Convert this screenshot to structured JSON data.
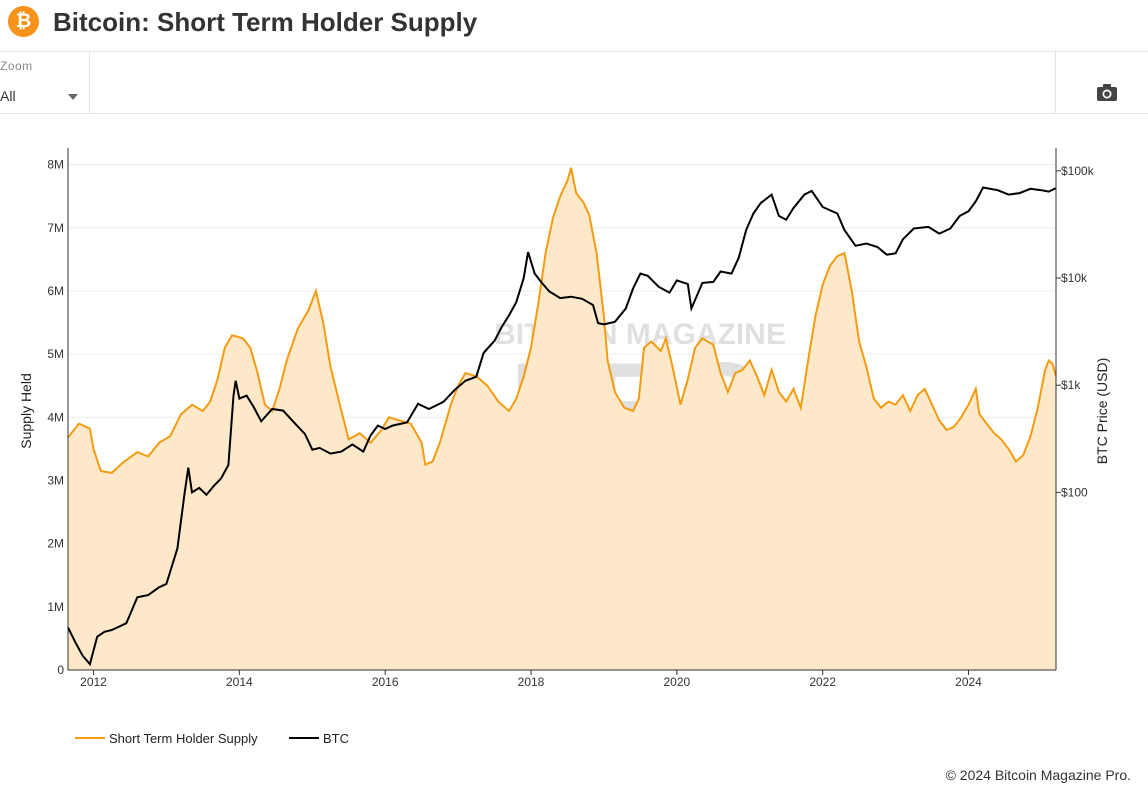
{
  "header": {
    "title": "Bitcoin: Short Term Holder Supply",
    "logo_glyph": "₿",
    "logo_color": "#f7931a"
  },
  "toolbar": {
    "zoom_label": "Zoom",
    "zoom_value": "All",
    "camera_icon": "camera-icon"
  },
  "footer": {
    "copyright": "© 2024 Bitcoin Magazine Pro."
  },
  "watermark": {
    "line1": "BITCOIN MAGAZINE",
    "line2": "PRO"
  },
  "chart_data": {
    "type": "area",
    "title": "",
    "x_ticks": [
      "2012",
      "2014",
      "2016",
      "2018",
      "2020",
      "2022",
      "2024"
    ],
    "xlim": [
      2011.65,
      2025.2
    ],
    "y_left": {
      "label": "Supply Held",
      "ticks": [
        "0",
        "1M",
        "2M",
        "3M",
        "4M",
        "5M",
        "6M",
        "7M",
        "8M"
      ],
      "tick_values": [
        0,
        1000000,
        2000000,
        3000000,
        4000000,
        5000000,
        6000000,
        7000000,
        8000000
      ],
      "range": [
        0,
        8200000
      ]
    },
    "y_right": {
      "label": "BTC Price (USD)",
      "scale": "log",
      "ticks": [
        "$100",
        "$1k",
        "$10k",
        "$100k"
      ],
      "tick_values": [
        100,
        1000,
        10000,
        100000
      ],
      "range": [
        2.2,
        150000
      ]
    },
    "grid": true,
    "legend_position": "bottom-left",
    "series": [
      {
        "name": "Short Term Holder Supply",
        "axis": "left",
        "color": "#f39c12",
        "fill": "#fde9c9",
        "points": [
          [
            2011.65,
            3680000
          ],
          [
            2011.8,
            3900000
          ],
          [
            2011.95,
            3820000
          ],
          [
            2012.0,
            3500000
          ],
          [
            2012.1,
            3150000
          ],
          [
            2012.25,
            3120000
          ],
          [
            2012.4,
            3280000
          ],
          [
            2012.6,
            3450000
          ],
          [
            2012.75,
            3380000
          ],
          [
            2012.9,
            3600000
          ],
          [
            2013.05,
            3700000
          ],
          [
            2013.2,
            4050000
          ],
          [
            2013.35,
            4200000
          ],
          [
            2013.5,
            4100000
          ],
          [
            2013.6,
            4250000
          ],
          [
            2013.7,
            4600000
          ],
          [
            2013.8,
            5100000
          ],
          [
            2013.9,
            5300000
          ],
          [
            2014.05,
            5250000
          ],
          [
            2014.15,
            5100000
          ],
          [
            2014.25,
            4700000
          ],
          [
            2014.35,
            4200000
          ],
          [
            2014.45,
            4100000
          ],
          [
            2014.55,
            4450000
          ],
          [
            2014.65,
            4900000
          ],
          [
            2014.8,
            5400000
          ],
          [
            2014.95,
            5700000
          ],
          [
            2015.05,
            6000000
          ],
          [
            2015.15,
            5500000
          ],
          [
            2015.25,
            4800000
          ],
          [
            2015.4,
            4100000
          ],
          [
            2015.5,
            3650000
          ],
          [
            2015.65,
            3750000
          ],
          [
            2015.8,
            3600000
          ],
          [
            2015.95,
            3800000
          ],
          [
            2016.05,
            4000000
          ],
          [
            2016.2,
            3950000
          ],
          [
            2016.35,
            3900000
          ],
          [
            2016.5,
            3600000
          ],
          [
            2016.55,
            3250000
          ],
          [
            2016.65,
            3300000
          ],
          [
            2016.75,
            3600000
          ],
          [
            2016.9,
            4200000
          ],
          [
            2017.0,
            4500000
          ],
          [
            2017.1,
            4700000
          ],
          [
            2017.25,
            4650000
          ],
          [
            2017.4,
            4500000
          ],
          [
            2017.55,
            4250000
          ],
          [
            2017.7,
            4100000
          ],
          [
            2017.8,
            4300000
          ],
          [
            2017.9,
            4650000
          ],
          [
            2018.0,
            5100000
          ],
          [
            2018.1,
            5800000
          ],
          [
            2018.2,
            6600000
          ],
          [
            2018.3,
            7150000
          ],
          [
            2018.4,
            7500000
          ],
          [
            2018.5,
            7750000
          ],
          [
            2018.55,
            7950000
          ],
          [
            2018.62,
            7550000
          ],
          [
            2018.72,
            7400000
          ],
          [
            2018.8,
            7200000
          ],
          [
            2018.9,
            6600000
          ],
          [
            2019.0,
            5600000
          ],
          [
            2019.05,
            4900000
          ],
          [
            2019.15,
            4400000
          ],
          [
            2019.28,
            4150000
          ],
          [
            2019.4,
            4100000
          ],
          [
            2019.48,
            4300000
          ],
          [
            2019.55,
            5100000
          ],
          [
            2019.65,
            5200000
          ],
          [
            2019.78,
            5050000
          ],
          [
            2019.85,
            5250000
          ],
          [
            2019.95,
            4750000
          ],
          [
            2020.05,
            4200000
          ],
          [
            2020.15,
            4600000
          ],
          [
            2020.25,
            5100000
          ],
          [
            2020.35,
            5250000
          ],
          [
            2020.5,
            5150000
          ],
          [
            2020.6,
            4700000
          ],
          [
            2020.7,
            4400000
          ],
          [
            2020.8,
            4700000
          ],
          [
            2020.9,
            4750000
          ],
          [
            2021.0,
            4900000
          ],
          [
            2021.1,
            4650000
          ],
          [
            2021.2,
            4350000
          ],
          [
            2021.3,
            4750000
          ],
          [
            2021.4,
            4400000
          ],
          [
            2021.5,
            4250000
          ],
          [
            2021.6,
            4450000
          ],
          [
            2021.7,
            4150000
          ],
          [
            2021.8,
            4900000
          ],
          [
            2021.9,
            5600000
          ],
          [
            2022.0,
            6100000
          ],
          [
            2022.1,
            6400000
          ],
          [
            2022.2,
            6550000
          ],
          [
            2022.3,
            6600000
          ],
          [
            2022.4,
            6000000
          ],
          [
            2022.5,
            5200000
          ],
          [
            2022.6,
            4800000
          ],
          [
            2022.7,
            4300000
          ],
          [
            2022.8,
            4150000
          ],
          [
            2022.9,
            4250000
          ],
          [
            2023.0,
            4200000
          ],
          [
            2023.1,
            4350000
          ],
          [
            2023.2,
            4100000
          ],
          [
            2023.3,
            4350000
          ],
          [
            2023.4,
            4450000
          ],
          [
            2023.5,
            4200000
          ],
          [
            2023.6,
            3950000
          ],
          [
            2023.7,
            3800000
          ],
          [
            2023.8,
            3850000
          ],
          [
            2023.9,
            4000000
          ],
          [
            2024.0,
            4200000
          ],
          [
            2024.1,
            4450000
          ],
          [
            2024.15,
            4050000
          ],
          [
            2024.25,
            3900000
          ],
          [
            2024.35,
            3750000
          ],
          [
            2024.45,
            3650000
          ],
          [
            2024.55,
            3500000
          ],
          [
            2024.65,
            3300000
          ],
          [
            2024.75,
            3400000
          ],
          [
            2024.85,
            3700000
          ],
          [
            2024.95,
            4150000
          ],
          [
            2025.05,
            4750000
          ],
          [
            2025.1,
            4900000
          ],
          [
            2025.15,
            4850000
          ],
          [
            2025.2,
            4650000
          ]
        ]
      },
      {
        "name": "BTC",
        "axis": "right",
        "color": "#000000",
        "points": [
          [
            2011.65,
            5.5
          ],
          [
            2011.75,
            4.0
          ],
          [
            2011.85,
            3.0
          ],
          [
            2011.95,
            2.5
          ],
          [
            2012.05,
            4.5
          ],
          [
            2012.15,
            5.0
          ],
          [
            2012.25,
            5.2
          ],
          [
            2012.45,
            6.0
          ],
          [
            2012.6,
            10.5
          ],
          [
            2012.75,
            11.0
          ],
          [
            2012.9,
            13.0
          ],
          [
            2013.0,
            14.0
          ],
          [
            2013.15,
            30.0
          ],
          [
            2013.25,
            100.0
          ],
          [
            2013.3,
            170.0
          ],
          [
            2013.35,
            100.0
          ],
          [
            2013.45,
            110.0
          ],
          [
            2013.55,
            95.0
          ],
          [
            2013.65,
            115.0
          ],
          [
            2013.75,
            135.0
          ],
          [
            2013.85,
            180.0
          ],
          [
            2013.92,
            800.0
          ],
          [
            2013.95,
            1100.0
          ],
          [
            2014.0,
            750.0
          ],
          [
            2014.1,
            800.0
          ],
          [
            2014.2,
            620.0
          ],
          [
            2014.3,
            460.0
          ],
          [
            2014.45,
            600.0
          ],
          [
            2014.6,
            580.0
          ],
          [
            2014.75,
            450.0
          ],
          [
            2014.9,
            350.0
          ],
          [
            2015.0,
            250.0
          ],
          [
            2015.1,
            260.0
          ],
          [
            2015.25,
            230.0
          ],
          [
            2015.4,
            240.0
          ],
          [
            2015.55,
            280.0
          ],
          [
            2015.7,
            240.0
          ],
          [
            2015.8,
            340.0
          ],
          [
            2015.9,
            420.0
          ],
          [
            2016.0,
            390.0
          ],
          [
            2016.1,
            420.0
          ],
          [
            2016.3,
            450.0
          ],
          [
            2016.45,
            670.0
          ],
          [
            2016.6,
            600.0
          ],
          [
            2016.8,
            700.0
          ],
          [
            2016.95,
            900.0
          ],
          [
            2017.1,
            1100.0
          ],
          [
            2017.25,
            1200.0
          ],
          [
            2017.35,
            2000.0
          ],
          [
            2017.5,
            2600.0
          ],
          [
            2017.6,
            3500.0
          ],
          [
            2017.7,
            4500.0
          ],
          [
            2017.8,
            6000.0
          ],
          [
            2017.9,
            10000.0
          ],
          [
            2017.96,
            17500.0
          ],
          [
            2018.05,
            11000.0
          ],
          [
            2018.15,
            9000.0
          ],
          [
            2018.25,
            7500.0
          ],
          [
            2018.4,
            6500.0
          ],
          [
            2018.55,
            6700.0
          ],
          [
            2018.7,
            6400.0
          ],
          [
            2018.85,
            5600.0
          ],
          [
            2018.92,
            3800.0
          ],
          [
            2019.0,
            3700.0
          ],
          [
            2019.15,
            3900.0
          ],
          [
            2019.3,
            5200.0
          ],
          [
            2019.4,
            8000.0
          ],
          [
            2019.5,
            11000.0
          ],
          [
            2019.6,
            10500.0
          ],
          [
            2019.75,
            8300.0
          ],
          [
            2019.9,
            7300.0
          ],
          [
            2020.0,
            9500.0
          ],
          [
            2020.15,
            8800.0
          ],
          [
            2020.2,
            5200.0
          ],
          [
            2020.35,
            9000.0
          ],
          [
            2020.5,
            9200.0
          ],
          [
            2020.6,
            11500.0
          ],
          [
            2020.75,
            11000.0
          ],
          [
            2020.85,
            15500.0
          ],
          [
            2020.95,
            28000.0
          ],
          [
            2021.05,
            40000.0
          ],
          [
            2021.15,
            50000.0
          ],
          [
            2021.3,
            60000.0
          ],
          [
            2021.4,
            38000.0
          ],
          [
            2021.5,
            35000.0
          ],
          [
            2021.6,
            45000.0
          ],
          [
            2021.75,
            60000.0
          ],
          [
            2021.85,
            65000.0
          ],
          [
            2022.0,
            46000.0
          ],
          [
            2022.2,
            40000.0
          ],
          [
            2022.3,
            28000.0
          ],
          [
            2022.45,
            20000.0
          ],
          [
            2022.6,
            21000.0
          ],
          [
            2022.75,
            19500.0
          ],
          [
            2022.88,
            16500.0
          ],
          [
            2023.0,
            17000.0
          ],
          [
            2023.1,
            23000.0
          ],
          [
            2023.25,
            29000.0
          ],
          [
            2023.45,
            30000.0
          ],
          [
            2023.6,
            26000.0
          ],
          [
            2023.75,
            29000.0
          ],
          [
            2023.88,
            38000.0
          ],
          [
            2024.0,
            42000.0
          ],
          [
            2024.1,
            52000.0
          ],
          [
            2024.2,
            70000.0
          ],
          [
            2024.4,
            66000.0
          ],
          [
            2024.55,
            60000.0
          ],
          [
            2024.7,
            62000.0
          ],
          [
            2024.85,
            68000.0
          ],
          [
            2025.0,
            66000.0
          ],
          [
            2025.1,
            64000.0
          ],
          [
            2025.2,
            69000.0
          ]
        ]
      }
    ]
  }
}
